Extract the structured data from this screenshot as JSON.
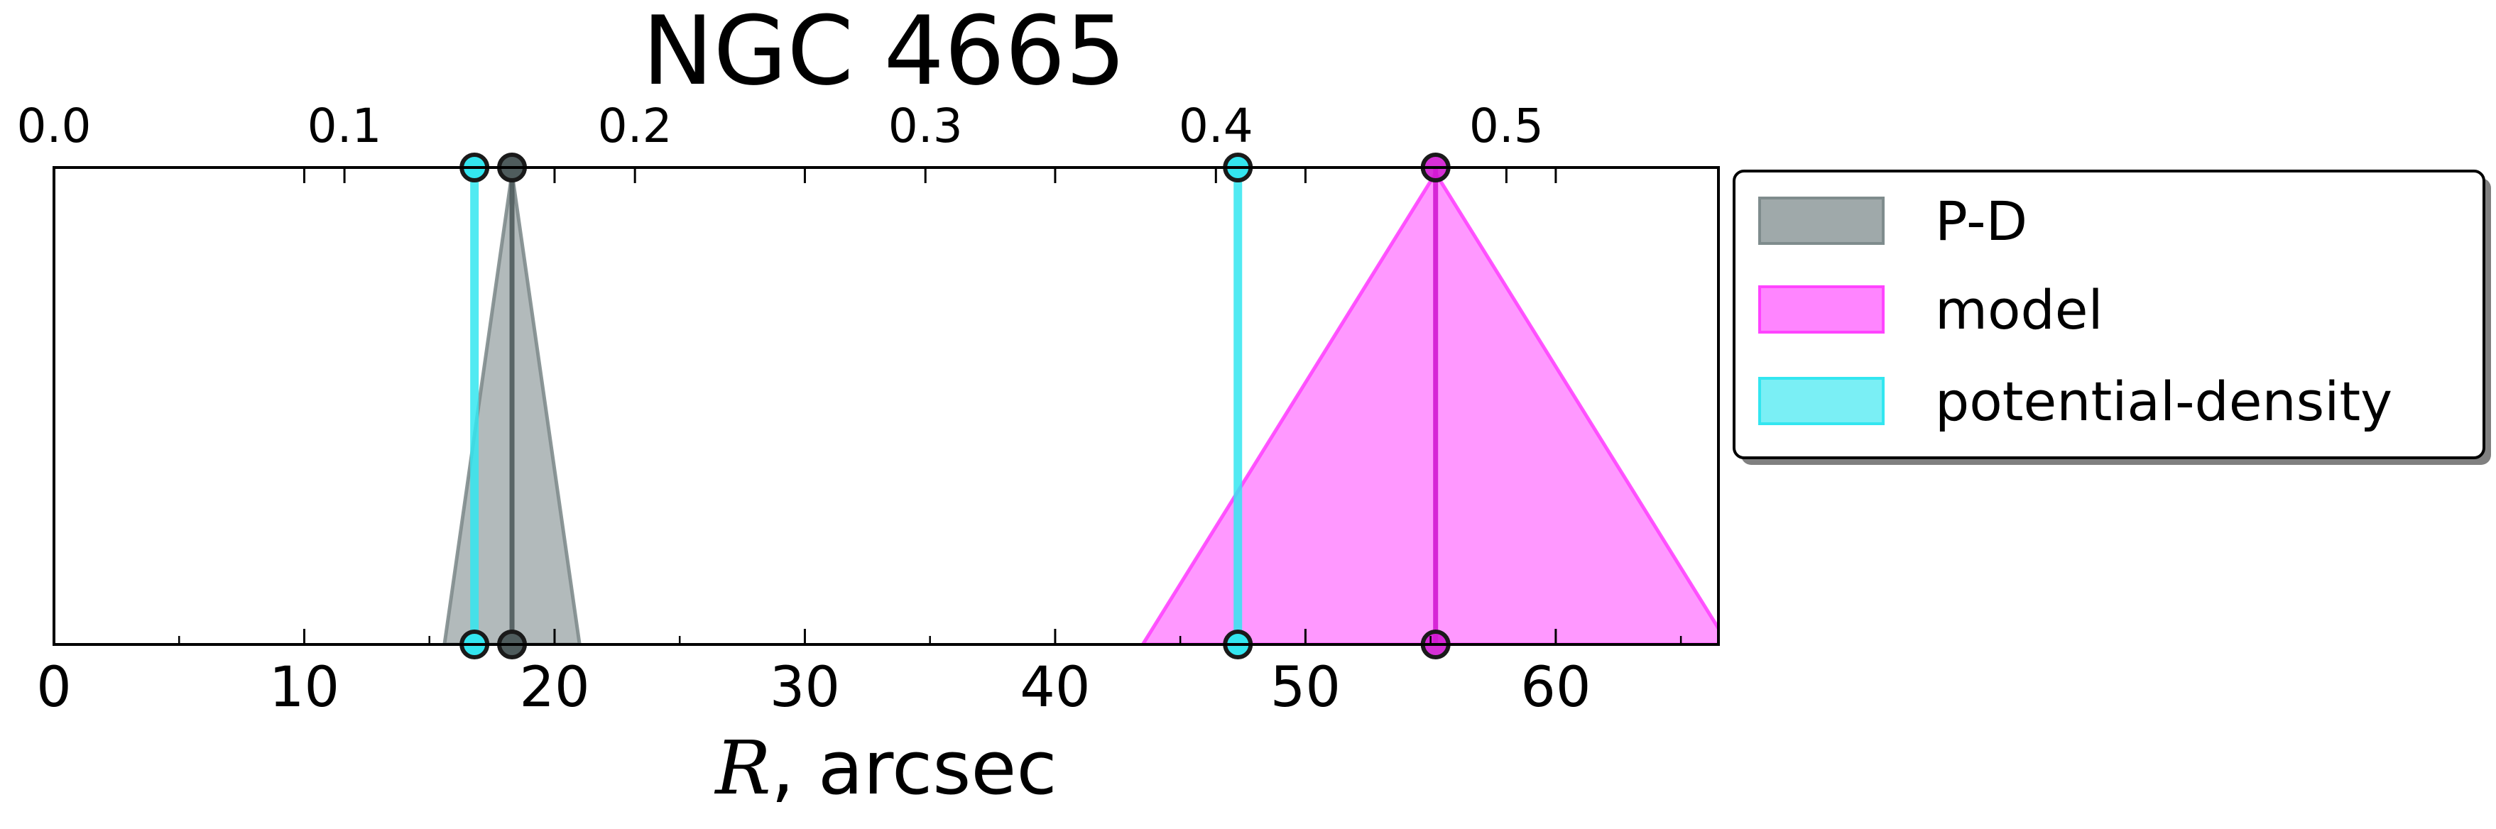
{
  "chart_data": {
    "type": "area",
    "title": "NGC 4665",
    "xlabel_var": "R",
    "xlabel_rest": ", arcsec",
    "xlim": [
      0,
      66.5
    ],
    "xticks": [
      0,
      10,
      20,
      30,
      40,
      50,
      60
    ],
    "x2lim": [
      0.0,
      0.573
    ],
    "x2ticks": [
      0.0,
      0.1,
      0.2,
      0.3,
      0.4,
      0.5
    ],
    "x2tick_labels": [
      "0.0",
      "0.1",
      "0.2",
      "0.3",
      "0.4",
      "0.5"
    ],
    "grid": false,
    "legend_position": "outside-right-top",
    "series": [
      {
        "name": "P-D",
        "color": "#7f8c8d",
        "shape": "triangle",
        "peaks": [
          {
            "x": 18.3,
            "low": 15.6,
            "high": 21.0
          }
        ]
      },
      {
        "name": "model",
        "color": "#ff44ff",
        "shape": "triangle",
        "peaks": [
          {
            "x": 55.2,
            "low": 43.5,
            "high": 66.9
          }
        ]
      },
      {
        "name": "potential-density",
        "color": "#33e6f0",
        "shape": "line",
        "peaks": [
          {
            "x": 16.8
          },
          {
            "x": 47.3
          }
        ]
      }
    ]
  }
}
